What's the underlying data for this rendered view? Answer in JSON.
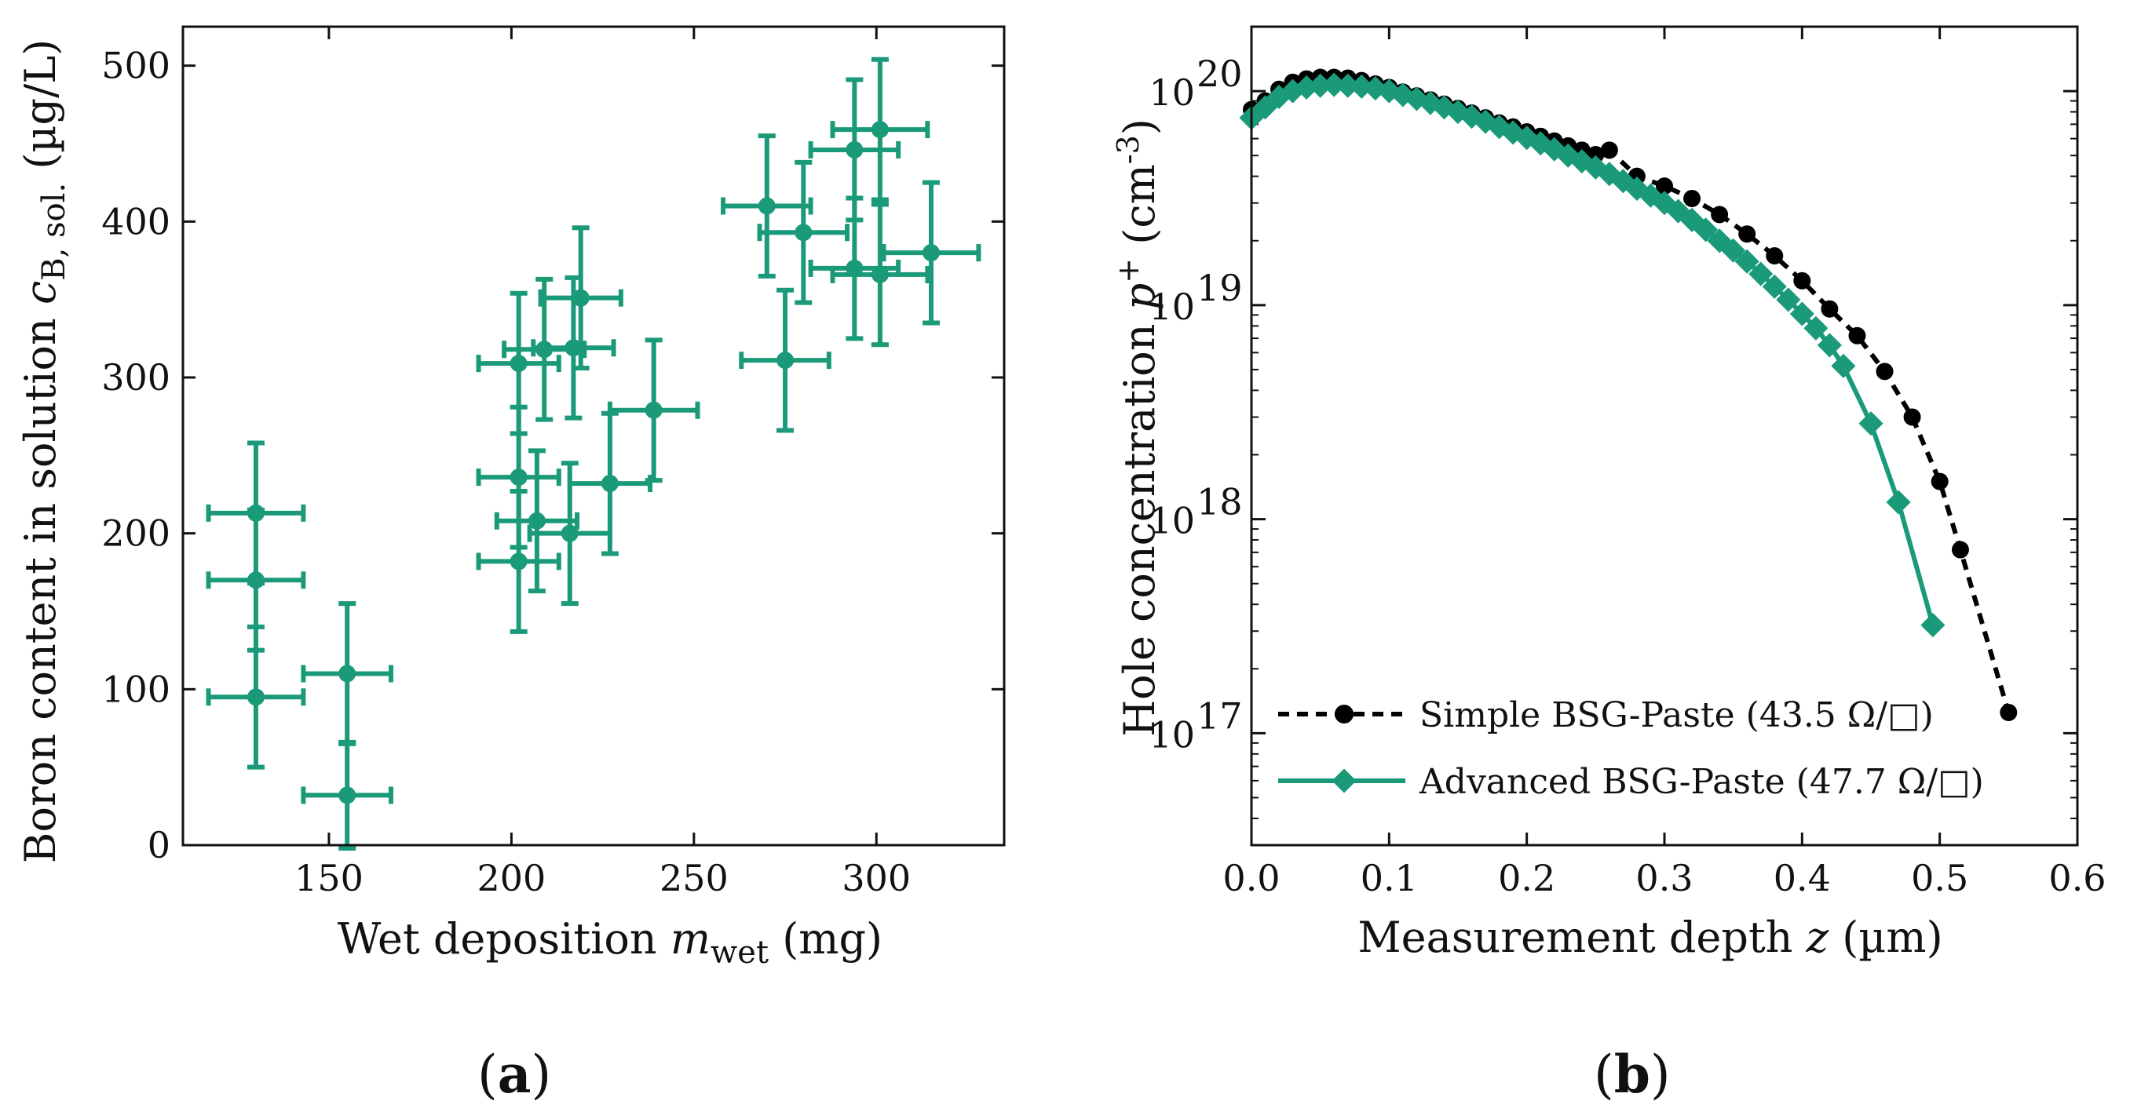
{
  "chart_data": [
    {
      "type": "scatter",
      "panel_label": "(a)",
      "panel_letter": "a",
      "xlabel": {
        "prefix": "Wet deposition ",
        "var": "m",
        "sub": "wet",
        "suffix": " (mg)"
      },
      "ylabel": {
        "prefix": "Boron content in solution ",
        "var": "c",
        "sub": "B, sol.",
        "suffix": " (µg/L)"
      },
      "xlim": [
        110,
        335
      ],
      "ylim": [
        0,
        525
      ],
      "xticks": [
        150,
        200,
        250,
        300
      ],
      "yticks": [
        0,
        100,
        200,
        300,
        400,
        500
      ],
      "xtick_labels": [
        "150",
        "200",
        "250",
        "300"
      ],
      "ytick_labels": [
        "0",
        "100",
        "200",
        "300",
        "400",
        "500"
      ],
      "color": "#1a9a78",
      "points": [
        {
          "x": 130,
          "y": 213,
          "xerr": 13,
          "yerr": 45
        },
        {
          "x": 130,
          "y": 170,
          "xerr": 13,
          "yerr": 45
        },
        {
          "x": 130,
          "y": 95,
          "xerr": 13,
          "yerr": 45
        },
        {
          "x": 155,
          "y": 110,
          "xerr": 12,
          "yerr": 45
        },
        {
          "x": 155,
          "y": 32,
          "xerr": 12,
          "yerr": 34
        },
        {
          "x": 202,
          "y": 309,
          "xerr": 11,
          "yerr": 45
        },
        {
          "x": 202,
          "y": 236,
          "xerr": 11,
          "yerr": 45
        },
        {
          "x": 202,
          "y": 182,
          "xerr": 11,
          "yerr": 45
        },
        {
          "x": 207,
          "y": 208,
          "xerr": 11,
          "yerr": 45
        },
        {
          "x": 209,
          "y": 318,
          "xerr": 11,
          "yerr": 45
        },
        {
          "x": 216,
          "y": 200,
          "xerr": 11,
          "yerr": 45
        },
        {
          "x": 217,
          "y": 319,
          "xerr": 11,
          "yerr": 45
        },
        {
          "x": 219,
          "y": 351,
          "xerr": 11,
          "yerr": 45
        },
        {
          "x": 227,
          "y": 232,
          "xerr": 11,
          "yerr": 45
        },
        {
          "x": 239,
          "y": 279,
          "xerr": 12,
          "yerr": 45
        },
        {
          "x": 270,
          "y": 410,
          "xerr": 12,
          "yerr": 45
        },
        {
          "x": 275,
          "y": 311,
          "xerr": 12,
          "yerr": 45
        },
        {
          "x": 280,
          "y": 393,
          "xerr": 12,
          "yerr": 45
        },
        {
          "x": 294,
          "y": 446,
          "xerr": 12,
          "yerr": 45
        },
        {
          "x": 294,
          "y": 370,
          "xerr": 12,
          "yerr": 45
        },
        {
          "x": 301,
          "y": 459,
          "xerr": 13,
          "yerr": 45
        },
        {
          "x": 301,
          "y": 366,
          "xerr": 13,
          "yerr": 45
        },
        {
          "x": 315,
          "y": 380,
          "xerr": 13,
          "yerr": 45
        }
      ]
    },
    {
      "type": "line",
      "panel_label": "(b)",
      "panel_letter": "b",
      "xlabel": {
        "prefix": "Measurement depth ",
        "var": "z",
        "suffix": " (µm)"
      },
      "ylabel": {
        "prefix": "Hole concentration ",
        "var": "p",
        "sup": "+",
        "suffix_pre": " (cm",
        "suffix_sup": "-3",
        "suffix_post": ")"
      },
      "xscale": "linear",
      "yscale": "log",
      "xlim": [
        0.0,
        0.6
      ],
      "ylim": [
        3e+16,
        2e+20
      ],
      "xticks": [
        0.0,
        0.1,
        0.2,
        0.3,
        0.4,
        0.5,
        0.6
      ],
      "xtick_labels": [
        "0.0",
        "0.1",
        "0.2",
        "0.3",
        "0.4",
        "0.5",
        "0.6"
      ],
      "ytick_exponents": [
        17,
        18,
        19,
        20
      ],
      "ytick_base": "10",
      "legend_position": "lower-left",
      "series": [
        {
          "name": "Simple BSG-Paste (43.5 Ω/□)",
          "color": "#000000",
          "marker": "circle",
          "linestyle": "dashed",
          "x": [
            0.0,
            0.01,
            0.02,
            0.03,
            0.04,
            0.05,
            0.06,
            0.07,
            0.08,
            0.09,
            0.1,
            0.11,
            0.12,
            0.13,
            0.14,
            0.15,
            0.16,
            0.17,
            0.18,
            0.19,
            0.2,
            0.21,
            0.22,
            0.23,
            0.24,
            0.25,
            0.26,
            0.28,
            0.3,
            0.32,
            0.34,
            0.36,
            0.38,
            0.4,
            0.42,
            0.44,
            0.46,
            0.48,
            0.5,
            0.515,
            0.55
          ],
          "y": [
            8.2e+19,
            9e+19,
            1.02e+20,
            1.1e+20,
            1.14e+20,
            1.16e+20,
            1.16e+20,
            1.15e+20,
            1.12e+20,
            1.08e+20,
            1.04e+20,
            9.9e+19,
            9.5e+19,
            9.1e+19,
            8.7e+19,
            8.3e+19,
            7.9e+19,
            7.5e+19,
            7.1e+19,
            6.8e+19,
            6.45e+19,
            6.15e+19,
            5.85e+19,
            5.55e+19,
            5.3e+19,
            5.05e+19,
            5.3e+19,
            4e+19,
            3.6e+19,
            3.15e+19,
            2.65e+19,
            2.15e+19,
            1.7e+19,
            1.3e+19,
            9.6e+18,
            7.2e+18,
            4.9e+18,
            3e+18,
            1.5e+18,
            7.2e+17,
            1.25e+17
          ]
        },
        {
          "name": "Advanced BSG-Paste (47.7 Ω/□)",
          "color": "#1a9a78",
          "marker": "diamond",
          "linestyle": "solid",
          "x": [
            0.0,
            0.01,
            0.02,
            0.03,
            0.04,
            0.05,
            0.06,
            0.07,
            0.08,
            0.09,
            0.1,
            0.11,
            0.12,
            0.13,
            0.14,
            0.15,
            0.16,
            0.17,
            0.18,
            0.19,
            0.2,
            0.21,
            0.22,
            0.23,
            0.24,
            0.25,
            0.26,
            0.27,
            0.28,
            0.29,
            0.3,
            0.31,
            0.32,
            0.33,
            0.34,
            0.35,
            0.36,
            0.37,
            0.38,
            0.39,
            0.4,
            0.41,
            0.42,
            0.43,
            0.45,
            0.47,
            0.495
          ],
          "y": [
            7.5e+19,
            8.4e+19,
            9.4e+19,
            1e+20,
            1.04e+20,
            1.06e+20,
            1.07e+20,
            1.06e+20,
            1.05e+20,
            1.03e+20,
            1e+20,
            9.6e+19,
            9.2e+19,
            8.8e+19,
            8.4e+19,
            8e+19,
            7.6e+19,
            7.2e+19,
            6.8e+19,
            6.4e+19,
            6.05e+19,
            5.7e+19,
            5.35e+19,
            5e+19,
            4.7e+19,
            4.4e+19,
            4.1e+19,
            3.8e+19,
            3.5e+19,
            3.25e+19,
            3e+19,
            2.75e+19,
            2.5e+19,
            2.25e+19,
            2e+19,
            1.8e+19,
            1.6e+19,
            1.4e+19,
            1.22e+19,
            1.06e+19,
            9.1e+18,
            7.8e+18,
            6.5e+18,
            5.2e+18,
            2.8e+18,
            1.2e+18,
            3.2e+17
          ]
        }
      ]
    }
  ]
}
